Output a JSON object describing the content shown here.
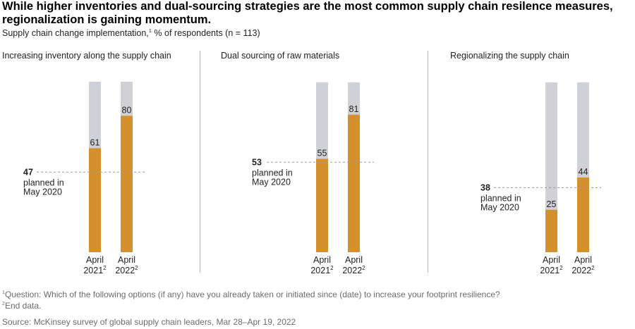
{
  "header": {
    "title": "While higher inventories and dual-sourcing strategies are the most common supply chain resilence measures, regionalization is gaining momentum.",
    "subtitle_main": "Supply chain change implementation,",
    "subtitle_sup": "1",
    "subtitle_rest": " % of respondents (n = 113)"
  },
  "colors": {
    "bar": "#d4902c",
    "track": "#d0d1d6",
    "text": "#222222"
  },
  "chart_data": {
    "type": "bar",
    "ylim": [
      0,
      100
    ],
    "categories": [
      "April 2021",
      "April 2022"
    ],
    "category_sup": "2",
    "panels": [
      {
        "title": "Increasing inventory along the supply chain",
        "values": [
          61,
          80
        ],
        "reference": {
          "value": 47,
          "label": [
            "planned in",
            "May 2020"
          ]
        }
      },
      {
        "title": "Dual sourcing of raw materials",
        "values": [
          55,
          81
        ],
        "reference": {
          "value": 53,
          "label": [
            "planned in",
            "May 2020"
          ]
        }
      },
      {
        "title": "Regionalizing the supply chain",
        "values": [
          25,
          44
        ],
        "reference": {
          "value": 38,
          "label": [
            "planned in",
            "May 2020"
          ]
        }
      }
    ]
  },
  "footnotes": {
    "note1_sup": "1",
    "note1": "Question: Which of the following options (if any) have you already taken or initiated since (date) to increase your footprint resilience?",
    "note2_sup": "2",
    "note2": "End data.",
    "source": "Source: McKinsey survey of global supply chain leaders, Mar 28–Apr 19, 2022"
  }
}
